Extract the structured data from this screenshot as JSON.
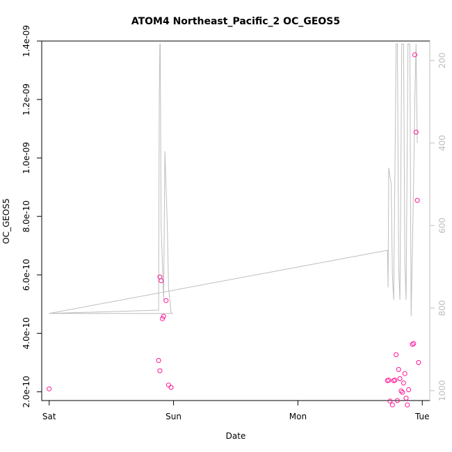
{
  "chart_data": {
    "type": "scatter",
    "title": "ATOM4 Northeast_Pacific_2 OC_GEOS5",
    "xlabel": "Date",
    "ylabel": "OC_GEOS5",
    "x_tick_labels": [
      "Sat",
      "Sun",
      "Mon",
      "Tue"
    ],
    "x_tick_values": [
      0,
      1,
      2,
      3
    ],
    "xlim": [
      -0.06,
      3.06
    ],
    "y_ticks": [
      2e-10,
      4e-10,
      6e-10,
      8e-10,
      1e-09,
      1.2e-09,
      1.4e-09
    ],
    "y_tick_labels": [
      "2.0e-10",
      "4.0e-10",
      "6.0e-10",
      "8.0e-10",
      "1.0e-09",
      "1.2e-09",
      "1.4e-09"
    ],
    "ylim": [
      1.7e-10,
      1.4e-09
    ],
    "right_axis": {
      "ticks": [
        200,
        400,
        600,
        800,
        1000
      ],
      "tick_labels": [
        "200",
        "400",
        "600",
        "800",
        "1000"
      ],
      "lim_top": 153,
      "lim_bottom": 1024,
      "color": "#bebebe"
    },
    "grid": false,
    "series": [
      {
        "kind": "points",
        "color": "#ff1493",
        "points": [
          [
            0.0,
            2.1e-10
          ],
          [
            0.88,
            3.07e-10
          ],
          [
            0.89,
            5.93e-10
          ],
          [
            0.89,
            2.72e-10
          ],
          [
            0.9,
            5.8e-10
          ],
          [
            0.91,
            4.5e-10
          ],
          [
            0.92,
            4.58e-10
          ],
          [
            0.94,
            5.12e-10
          ],
          [
            0.96,
            2.23e-10
          ],
          [
            0.98,
            2.15e-10
          ],
          [
            2.72,
            2.38e-10
          ],
          [
            2.73,
            2.4e-10
          ],
          [
            2.74,
            1.68e-10
          ],
          [
            2.76,
            1.55e-10
          ],
          [
            2.77,
            2.38e-10
          ],
          [
            2.78,
            2.4e-10
          ],
          [
            2.79,
            3.27e-10
          ],
          [
            2.8,
            1.7e-10
          ],
          [
            2.81,
            2.76e-10
          ],
          [
            2.82,
            2.45e-10
          ],
          [
            2.83,
            2.03e-10
          ],
          [
            2.84,
            1.98e-10
          ],
          [
            2.85,
            2.3e-10
          ],
          [
            2.86,
            2.62e-10
          ],
          [
            2.87,
            1.78e-10
          ],
          [
            2.88,
            1.55e-10
          ],
          [
            2.89,
            2.07e-10
          ],
          [
            2.92,
            3.62e-10
          ],
          [
            2.93,
            3.65e-10
          ],
          [
            2.94,
            1.353e-09
          ],
          [
            2.95,
            1.088e-09
          ],
          [
            2.96,
            8.55e-10
          ],
          [
            2.97,
            3e-10
          ]
        ]
      },
      {
        "kind": "line",
        "axis": "right",
        "color": "#bebebe",
        "points": [
          [
            0.0,
            813
          ],
          [
            0.88,
            805
          ],
          [
            0.885,
            300
          ],
          [
            0.89,
            160
          ],
          [
            0.893,
            160
          ],
          [
            0.9,
            600
          ],
          [
            0.92,
            780
          ],
          [
            0.93,
            420
          ],
          [
            0.95,
            600
          ],
          [
            0.96,
            750
          ],
          [
            0.98,
            810
          ],
          [
            0.99,
            813
          ],
          [
            0.0,
            813
          ],
          [
            2.72,
            660
          ],
          [
            2.725,
            750
          ],
          [
            2.73,
            460
          ],
          [
            2.75,
            500
          ],
          [
            2.76,
            720
          ],
          [
            2.77,
            780
          ],
          [
            2.79,
            160
          ],
          [
            2.8,
            160
          ],
          [
            2.81,
            700
          ],
          [
            2.82,
            780
          ],
          [
            2.835,
            160
          ],
          [
            2.85,
            160
          ],
          [
            2.86,
            690
          ],
          [
            2.87,
            780
          ],
          [
            2.885,
            160
          ],
          [
            2.9,
            160
          ],
          [
            2.91,
            820
          ],
          [
            2.93,
            500
          ],
          [
            2.94,
            300
          ],
          [
            2.95,
            160
          ],
          [
            2.96,
            400
          ]
        ]
      }
    ]
  }
}
